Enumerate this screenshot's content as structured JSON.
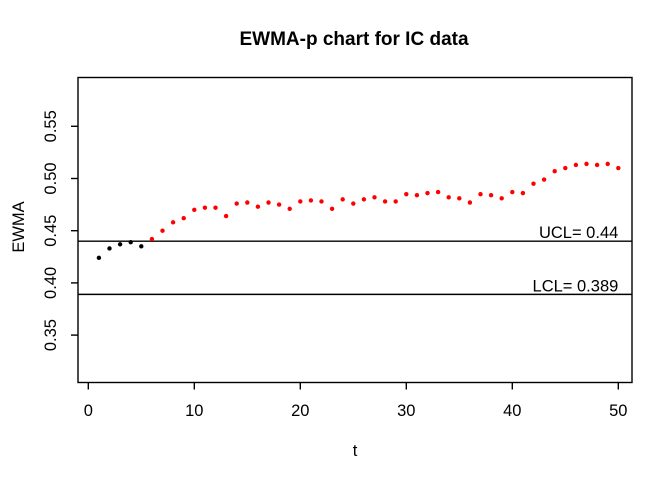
{
  "chart_data": {
    "type": "scatter",
    "title": "EWMA-p chart for IC data",
    "xlabel": "t",
    "ylabel": "EWMA",
    "grid": false,
    "legend": "none",
    "xlim": [
      -1,
      51.3
    ],
    "ylim": [
      0.305,
      0.597
    ],
    "xticks": [
      {
        "v": 0,
        "label": "0"
      },
      {
        "v": 10,
        "label": "10"
      },
      {
        "v": 20,
        "label": "20"
      },
      {
        "v": 30,
        "label": "30"
      },
      {
        "v": 40,
        "label": "40"
      },
      {
        "v": 50,
        "label": "50"
      }
    ],
    "yticks": [
      {
        "v": 0.35,
        "label": "0.35"
      },
      {
        "v": 0.4,
        "label": "0.40"
      },
      {
        "v": 0.45,
        "label": "0.45"
      },
      {
        "v": 0.5,
        "label": "0.50"
      },
      {
        "v": 0.55,
        "label": "0.55"
      }
    ],
    "control_limits": [
      {
        "name": "UCL",
        "value": 0.44,
        "label": "UCL= 0.44"
      },
      {
        "name": "LCL",
        "value": 0.389,
        "label": "LCL= 0.389"
      }
    ],
    "x": [
      1,
      2,
      3,
      4,
      5,
      6,
      7,
      8,
      9,
      10,
      11,
      12,
      13,
      14,
      15,
      16,
      17,
      18,
      19,
      20,
      21,
      22,
      23,
      24,
      25,
      26,
      27,
      28,
      29,
      30,
      31,
      32,
      33,
      34,
      35,
      36,
      37,
      38,
      39,
      40,
      41,
      42,
      43,
      44,
      45,
      46,
      47,
      48,
      49,
      50
    ],
    "values": [
      0.424,
      0.433,
      0.437,
      0.439,
      0.435,
      0.442,
      0.45,
      0.458,
      0.462,
      0.47,
      0.472,
      0.472,
      0.464,
      0.476,
      0.477,
      0.473,
      0.477,
      0.475,
      0.471,
      0.478,
      0.479,
      0.478,
      0.471,
      0.48,
      0.476,
      0.48,
      0.482,
      0.478,
      0.478,
      0.485,
      0.484,
      0.486,
      0.487,
      0.482,
      0.481,
      0.477,
      0.485,
      0.484,
      0.481,
      0.487,
      0.486,
      0.495,
      0.499,
      0.507,
      0.51,
      0.513,
      0.514,
      0.513,
      0.514,
      0.51
    ],
    "point_color_rule": {
      "black_through_t": 5,
      "black": "#000000",
      "red": "#ff0000"
    }
  }
}
